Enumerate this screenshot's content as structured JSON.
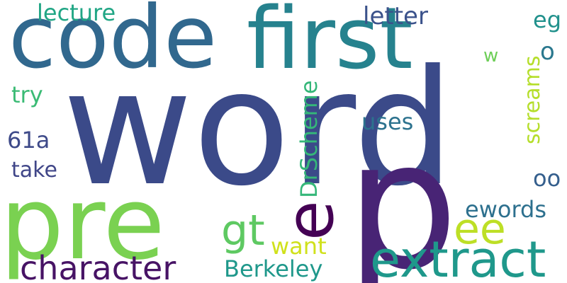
{
  "words": [
    {
      "text": "word",
      "color": "#3b4a89"
    },
    {
      "text": "code",
      "color": "#31688e"
    },
    {
      "text": "first",
      "color": "#26828e"
    },
    {
      "text": "pre",
      "color": "#7ad151"
    },
    {
      "text": "p",
      "color": "#482475"
    },
    {
      "text": "e",
      "color": "#440154"
    },
    {
      "text": "extract",
      "color": "#1f988b"
    },
    {
      "text": "character",
      "color": "#471365"
    },
    {
      "text": "gt",
      "color": "#5ec962"
    },
    {
      "text": "ee",
      "color": "#bddf26"
    },
    {
      "text": "Berkeley",
      "color": "#1f988b"
    },
    {
      "text": "want",
      "color": "#d0e11c"
    },
    {
      "text": "lecture",
      "color": "#21a685"
    },
    {
      "text": "letter",
      "color": "#3b528b"
    },
    {
      "text": "eg",
      "color": "#21918c"
    },
    {
      "text": "o",
      "color": "#2a788e"
    },
    {
      "text": "w",
      "color": "#6ece58"
    },
    {
      "text": "screams",
      "color": "#b5de2b"
    },
    {
      "text": "try",
      "color": "#3bbb75"
    },
    {
      "text": "DrScheme",
      "color": "#35b779"
    },
    {
      "text": "uses",
      "color": "#2c728e"
    },
    {
      "text": "61a",
      "color": "#3e4a89"
    },
    {
      "text": "take",
      "color": "#404688"
    },
    {
      "text": "oo",
      "color": "#355f8d"
    },
    {
      "text": "ewords",
      "color": "#2d708e"
    }
  ]
}
